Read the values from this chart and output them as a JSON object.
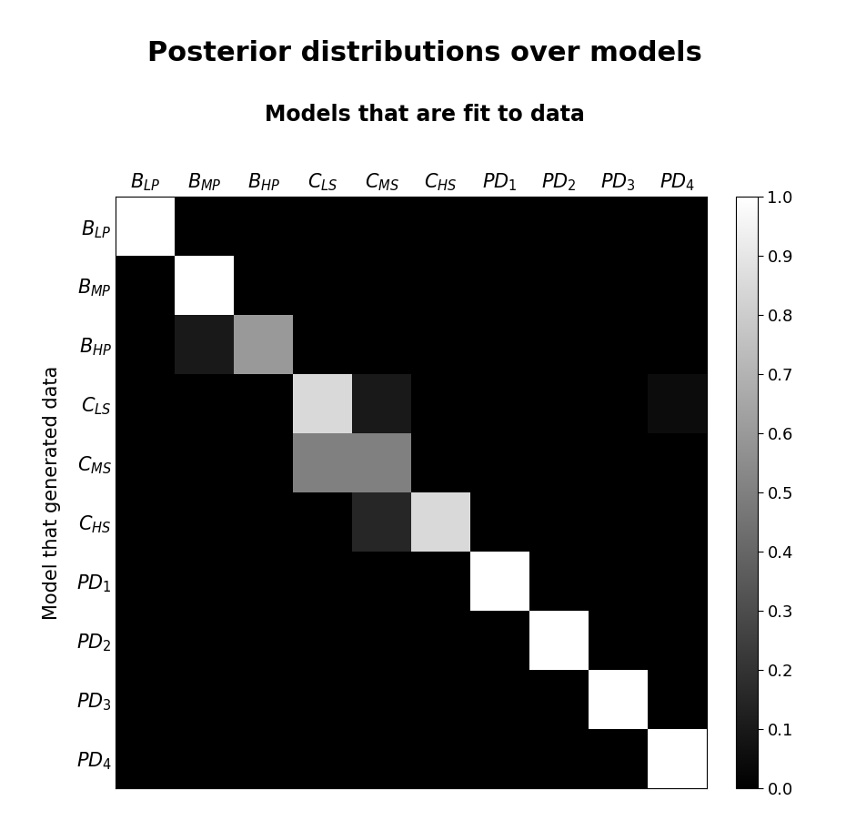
{
  "title": "Posterior distributions over models",
  "subtitle": "Models that are fit to data",
  "ylabel": "Model that generated data",
  "xlabels": [
    "$B_{LP}$",
    "$B_{MP}$",
    "$B_{HP}$",
    "$C_{LS}$",
    "$C_{MS}$",
    "$C_{HS}$",
    "$PD_1$",
    "$PD_2$",
    "$PD_3$",
    "$PD_4$"
  ],
  "ylabels": [
    "$B_{LP}$",
    "$B_{MP}$",
    "$B_{HP}$",
    "$C_{LS}$",
    "$C_{MS}$",
    "$C_{HS}$",
    "$PD_1$",
    "$PD_2$",
    "$PD_3$",
    "$PD_4$"
  ],
  "matrix": [
    [
      1.0,
      0.0,
      0.0,
      0.0,
      0.0,
      0.0,
      0.0,
      0.0,
      0.0,
      0.0
    ],
    [
      0.0,
      1.0,
      0.0,
      0.0,
      0.0,
      0.0,
      0.0,
      0.0,
      0.0,
      0.0
    ],
    [
      0.0,
      0.1,
      0.6,
      0.0,
      0.0,
      0.0,
      0.0,
      0.0,
      0.0,
      0.0
    ],
    [
      0.0,
      0.0,
      0.0,
      0.85,
      0.1,
      0.0,
      0.0,
      0.0,
      0.0,
      0.05
    ],
    [
      0.0,
      0.0,
      0.0,
      0.5,
      0.5,
      0.0,
      0.0,
      0.0,
      0.0,
      0.0
    ],
    [
      0.0,
      0.0,
      0.0,
      0.0,
      0.15,
      0.85,
      0.0,
      0.0,
      0.0,
      0.0
    ],
    [
      0.0,
      0.0,
      0.0,
      0.0,
      0.0,
      0.0,
      1.0,
      0.0,
      0.0,
      0.0
    ],
    [
      0.0,
      0.0,
      0.0,
      0.0,
      0.0,
      0.0,
      0.0,
      1.0,
      0.0,
      0.0
    ],
    [
      0.0,
      0.0,
      0.0,
      0.0,
      0.0,
      0.0,
      0.0,
      0.0,
      1.0,
      0.0
    ],
    [
      0.0,
      0.0,
      0.0,
      0.0,
      0.0,
      0.0,
      0.0,
      0.0,
      0.0,
      1.0
    ]
  ],
  "cmap": "gray",
  "vmin": 0,
  "vmax": 1,
  "colorbar_ticks": [
    0,
    0.1,
    0.2,
    0.3,
    0.4,
    0.5,
    0.6,
    0.7,
    0.8,
    0.9,
    1.0
  ],
  "title_fontsize": 22,
  "subtitle_fontsize": 17,
  "ylabel_fontsize": 15,
  "tick_fontsize": 15,
  "colorbar_fontsize": 13
}
